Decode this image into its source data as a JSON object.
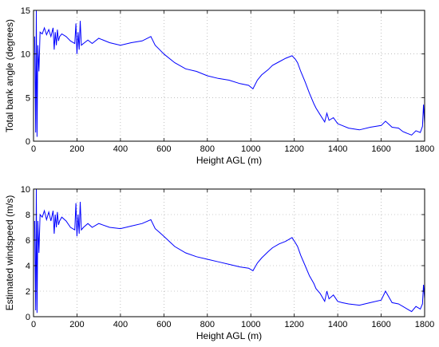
{
  "chart_data": [
    {
      "type": "line",
      "xlabel": "Height AGL (m)",
      "ylabel": "Total bank angle (degrees)",
      "xlim": [
        0,
        1800
      ],
      "ylim": [
        0,
        15
      ],
      "xticks": [
        0,
        200,
        400,
        600,
        800,
        1000,
        1200,
        1400,
        1600,
        1800
      ],
      "yticks": [
        0,
        5,
        10,
        15
      ],
      "grid": true,
      "line_color": "#0000ff",
      "series": [
        {
          "x": [
            5,
            10,
            13,
            16,
            20,
            25,
            30,
            40,
            50,
            60,
            70,
            80,
            90,
            95,
            100,
            105,
            110,
            115,
            120,
            130,
            150,
            170,
            190,
            195,
            200,
            205,
            210,
            215,
            220,
            230,
            250,
            270,
            300,
            350,
            400,
            450,
            500,
            540,
            560,
            580,
            600,
            650,
            700,
            750,
            800,
            850,
            900,
            950,
            990,
            1010,
            1030,
            1050,
            1080,
            1100,
            1130,
            1160,
            1190,
            1205,
            1215,
            1230,
            1250,
            1270,
            1290,
            1300,
            1320,
            1340,
            1350,
            1360,
            1380,
            1400,
            1420,
            1450,
            1500,
            1550,
            1600,
            1620,
            1650,
            1680,
            1700,
            1720,
            1740,
            1760,
            1780,
            1790,
            1795,
            1800
          ],
          "y": [
            12.0,
            1.0,
            15.0,
            0.5,
            11.0,
            8.0,
            12.5,
            12.3,
            13.0,
            12.2,
            12.8,
            12.0,
            13.0,
            10.5,
            12.5,
            11.0,
            12.8,
            11.5,
            12.0,
            12.3,
            12.0,
            11.5,
            11.2,
            13.5,
            10.0,
            12.5,
            10.5,
            13.8,
            11.0,
            11.2,
            11.6,
            11.2,
            11.8,
            11.3,
            11.0,
            11.3,
            11.5,
            12.0,
            11.0,
            10.5,
            10.0,
            9.0,
            8.3,
            8.0,
            7.5,
            7.2,
            7.0,
            6.6,
            6.4,
            6.0,
            7.0,
            7.6,
            8.2,
            8.7,
            9.1,
            9.5,
            9.8,
            9.4,
            9.0,
            8.0,
            6.8,
            5.5,
            4.3,
            3.8,
            3.0,
            2.2,
            3.2,
            2.4,
            2.7,
            2.0,
            1.8,
            1.5,
            1.3,
            1.6,
            1.8,
            2.3,
            1.6,
            1.5,
            1.1,
            0.9,
            0.7,
            1.2,
            1.0,
            1.7,
            4.2,
            2.0
          ]
        }
      ]
    },
    {
      "type": "line",
      "xlabel": "Height AGL (m)",
      "ylabel": "Estimated windspeed (m/s)",
      "xlim": [
        0,
        1800
      ],
      "ylim": [
        0,
        10
      ],
      "xticks": [
        0,
        200,
        400,
        600,
        800,
        1000,
        1200,
        1400,
        1600,
        1800
      ],
      "yticks": [
        0,
        2,
        4,
        6,
        8,
        10
      ],
      "grid": true,
      "line_color": "#0000ff",
      "series": [
        {
          "x": [
            5,
            10,
            13,
            16,
            20,
            25,
            30,
            40,
            50,
            60,
            70,
            80,
            90,
            95,
            100,
            105,
            110,
            115,
            120,
            130,
            150,
            170,
            190,
            195,
            200,
            205,
            210,
            215,
            220,
            230,
            250,
            270,
            300,
            350,
            400,
            450,
            500,
            540,
            560,
            580,
            600,
            650,
            700,
            750,
            800,
            850,
            900,
            950,
            990,
            1010,
            1030,
            1050,
            1080,
            1100,
            1130,
            1160,
            1190,
            1205,
            1215,
            1230,
            1250,
            1270,
            1290,
            1300,
            1320,
            1340,
            1350,
            1360,
            1380,
            1400,
            1420,
            1450,
            1500,
            1550,
            1600,
            1620,
            1650,
            1680,
            1700,
            1720,
            1740,
            1760,
            1780,
            1790,
            1795,
            1800
          ],
          "y": [
            7.5,
            0.5,
            10.0,
            0.3,
            7.5,
            5.0,
            8.0,
            7.8,
            8.3,
            7.6,
            8.2,
            7.5,
            8.3,
            6.5,
            8.0,
            7.0,
            8.2,
            7.2,
            7.5,
            7.8,
            7.5,
            7.0,
            6.8,
            8.9,
            6.3,
            8.0,
            6.5,
            9.0,
            6.8,
            7.0,
            7.3,
            7.0,
            7.3,
            7.0,
            6.9,
            7.1,
            7.3,
            7.6,
            6.9,
            6.6,
            6.3,
            5.5,
            5.0,
            4.7,
            4.5,
            4.3,
            4.1,
            3.9,
            3.8,
            3.6,
            4.2,
            4.6,
            5.1,
            5.4,
            5.7,
            5.9,
            6.2,
            5.8,
            5.5,
            4.8,
            4.0,
            3.2,
            2.6,
            2.2,
            1.8,
            1.2,
            2.0,
            1.4,
            1.7,
            1.2,
            1.1,
            1.0,
            0.9,
            1.1,
            1.3,
            2.0,
            1.1,
            1.0,
            0.8,
            0.6,
            0.4,
            0.8,
            0.6,
            1.0,
            2.5,
            1.4
          ]
        }
      ]
    }
  ]
}
